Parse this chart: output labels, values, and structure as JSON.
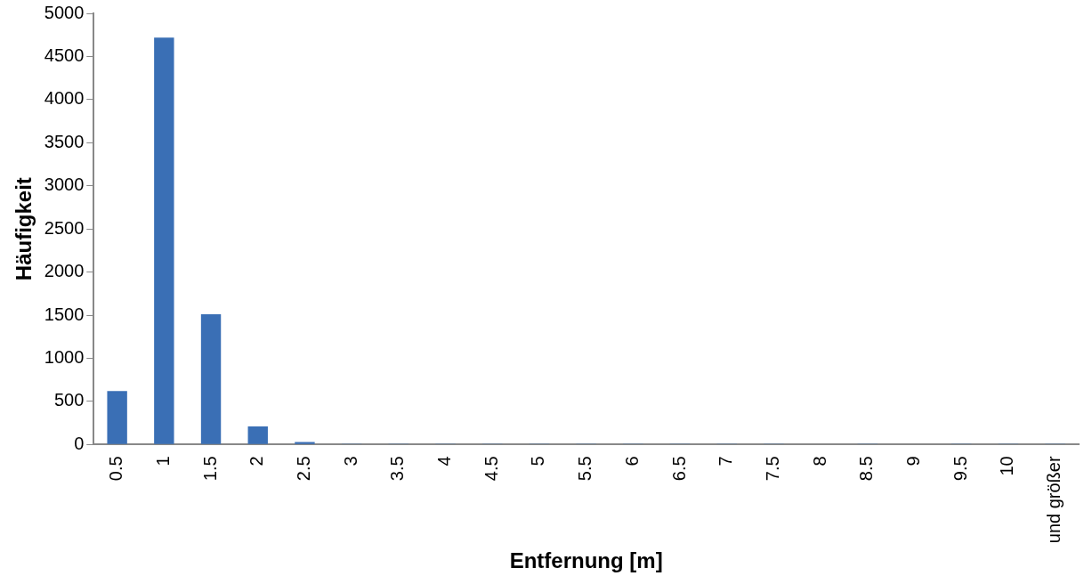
{
  "chart_data": {
    "type": "bar",
    "xlabel": "Entfernung [m]",
    "ylabel": "Häufigkeit",
    "categories": [
      "0.5",
      "1",
      "1.5",
      "2",
      "2.5",
      "3",
      "3.5",
      "4",
      "4.5",
      "5",
      "5.5",
      "6",
      "6.5",
      "7",
      "7.5",
      "8",
      "8.5",
      "9",
      "9.5",
      "10",
      "und größer"
    ],
    "values": [
      620,
      4720,
      1510,
      210,
      30,
      10,
      10,
      10,
      10,
      10,
      10,
      10,
      10,
      10,
      10,
      0,
      10,
      0,
      10,
      10,
      10
    ],
    "color": "#3a6fb5",
    "ylim": [
      0,
      5000
    ],
    "yticks": [
      0,
      500,
      1000,
      1500,
      2000,
      2500,
      3000,
      3500,
      4000,
      4500,
      5000
    ],
    "grid": false,
    "legend": false
  }
}
